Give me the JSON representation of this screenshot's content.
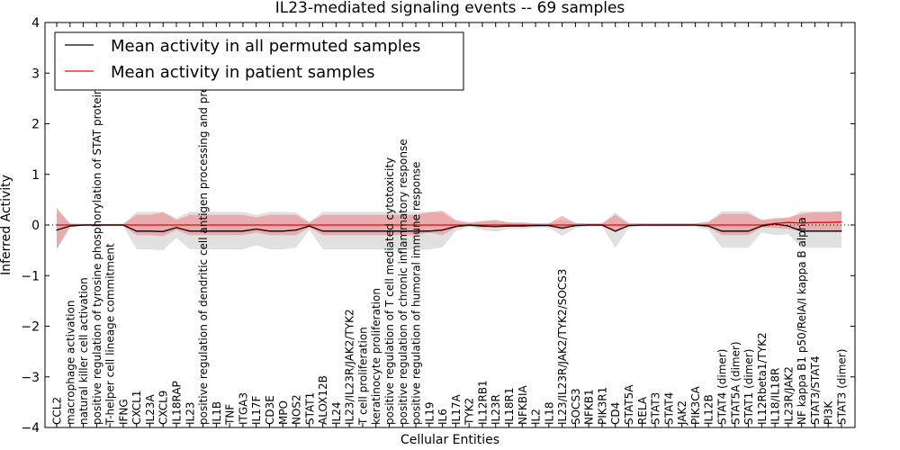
{
  "chart_data": {
    "type": "line",
    "title": "IL23-mediated signaling events -- 69 samples",
    "xlabel": "Cellular Entities",
    "ylabel": "Inferred Activity",
    "ylim": [
      -4,
      4
    ],
    "yticks": [
      -4,
      -3,
      -2,
      -1,
      0,
      1,
      2,
      3,
      4
    ],
    "grid": false,
    "legend_position": "top-left",
    "categories": [
      "CCL2",
      "macrophage activation",
      "natural killer cell activation",
      "positive regulation of tyrosine phosphorylation of STAT protein",
      "T-helper cell lineage commitment",
      "IFNG",
      "CXCL1",
      "IL23A",
      "CXCL9",
      "IL18RAP",
      "IL23",
      "positive regulation of dendritic cell antigen processing and presentation",
      "IL1B",
      "TNF",
      "ITGA3",
      "IL17F",
      "CD3E",
      "MPO",
      "NOS2",
      "STAT1",
      "ALOX12B",
      "IL24",
      "IL23/IL23R/JAK2/TYK2",
      "T cell proliferation",
      "keratinocyte proliferation",
      "positive regulation of T cell mediated cytotoxicity",
      "positive regulation of chronic inflammatory response",
      "positive regulation of humoral immune response",
      "IL19",
      "IL6",
      "IL17A",
      "TYK2",
      "IL12RB1",
      "IL23R",
      "IL18R1",
      "NFKBIA",
      "IL2",
      "IL18",
      "IL23/IL23R/JAK2/TYK2/SOCS3",
      "SOCS3",
      "NFKB1",
      "PIK3R1",
      "CD4",
      "STAT5A",
      "RELA",
      "STAT3",
      "STAT4",
      "JAK2",
      "PIK3CA",
      "IL12B",
      "STAT4 (dimer)",
      "STAT5A (dimer)",
      "STAT1 (dimer)",
      "IL12Rbeta1/TYK2",
      "IL18/IL18R",
      "IL23R/JAK2",
      "NF kappa B1 p50/RelA/I kappa B alpha",
      "STAT3/STAT4",
      "PI3K",
      "STAT3 (dimer)"
    ],
    "series": [
      {
        "name": "Mean activity in all permuted samples",
        "color": "#000000",
        "values": [
          -0.1,
          -0.02,
          0,
          0,
          0,
          0,
          -0.12,
          -0.12,
          -0.13,
          -0.05,
          -0.12,
          -0.12,
          -0.12,
          -0.12,
          -0.12,
          -0.08,
          -0.12,
          -0.12,
          -0.1,
          -0.02,
          -0.12,
          -0.12,
          -0.12,
          -0.12,
          -0.12,
          -0.12,
          -0.12,
          -0.12,
          -0.12,
          -0.1,
          -0.03,
          0,
          -0.02,
          -0.03,
          -0.02,
          -0.02,
          -0.01,
          -0.01,
          -0.06,
          -0.01,
          0,
          0,
          -0.12,
          -0.01,
          0,
          0,
          0,
          0,
          0,
          -0.02,
          -0.12,
          -0.12,
          -0.12,
          -0.02,
          0.02,
          -0.02,
          -0.12,
          -0.12,
          -0.12,
          -0.12
        ],
        "band_upper": [
          0.28,
          0.04,
          0.02,
          0.02,
          0.02,
          0.02,
          0.26,
          0.26,
          0.26,
          0.14,
          0.26,
          0.26,
          0.26,
          0.26,
          0.26,
          0.2,
          0.26,
          0.26,
          0.25,
          0.06,
          0.26,
          0.26,
          0.26,
          0.26,
          0.26,
          0.26,
          0.26,
          0.26,
          0.26,
          0.24,
          0.07,
          0.03,
          0.07,
          0.09,
          0.05,
          0.05,
          0.03,
          0.03,
          0.11,
          0.04,
          0.03,
          0.03,
          0.25,
          0.04,
          0.03,
          0.03,
          0.03,
          0.03,
          0.03,
          0.07,
          0.27,
          0.27,
          0.27,
          0.1,
          0.14,
          0.14,
          0.27,
          0.27,
          0.27,
          0.27
        ],
        "band_lower": [
          -0.48,
          -0.07,
          -0.02,
          -0.02,
          -0.02,
          -0.02,
          -0.48,
          -0.48,
          -0.5,
          -0.25,
          -0.48,
          -0.48,
          -0.48,
          -0.48,
          -0.48,
          -0.4,
          -0.48,
          -0.48,
          -0.45,
          -0.1,
          -0.48,
          -0.48,
          -0.48,
          -0.48,
          -0.48,
          -0.48,
          -0.48,
          -0.48,
          -0.48,
          -0.44,
          -0.12,
          -0.03,
          -0.1,
          -0.13,
          -0.08,
          -0.08,
          -0.05,
          -0.05,
          -0.22,
          -0.06,
          -0.03,
          -0.03,
          -0.45,
          -0.06,
          -0.03,
          -0.03,
          -0.03,
          -0.03,
          -0.03,
          -0.1,
          -0.45,
          -0.45,
          -0.45,
          -0.15,
          -0.2,
          -0.18,
          -0.45,
          -0.45,
          -0.45,
          -0.45
        ]
      },
      {
        "name": "Mean activity in patient samples",
        "color": "#ff0000",
        "values": [
          0,
          0,
          0,
          0,
          0,
          0,
          0,
          0,
          0,
          0,
          0,
          0,
          0,
          0,
          0,
          0,
          0,
          0,
          0,
          0,
          0,
          0,
          0,
          0,
          0,
          0,
          0,
          0,
          0,
          0,
          0,
          0,
          0,
          0,
          0,
          0,
          0,
          0,
          0,
          0,
          0,
          0,
          0,
          0,
          0,
          0,
          0,
          0,
          0,
          0,
          0,
          0,
          0,
          0,
          0.03,
          0.05,
          0.04,
          0.05,
          0.05,
          0.06
        ],
        "band_upper": [
          0.35,
          0.02,
          0.02,
          0.02,
          0.02,
          0.02,
          0.2,
          0.2,
          0.25,
          0.1,
          0.2,
          0.2,
          0.2,
          0.2,
          0.2,
          0.15,
          0.2,
          0.2,
          0.2,
          0.05,
          0.2,
          0.2,
          0.2,
          0.2,
          0.2,
          0.2,
          0.2,
          0.2,
          0.25,
          0.28,
          0.1,
          0.05,
          0.08,
          0.1,
          0.05,
          0.05,
          0.03,
          0.03,
          0.18,
          0.04,
          0.03,
          0.03,
          0.2,
          0.03,
          0.03,
          0.03,
          0.03,
          0.03,
          0.03,
          0.06,
          0.22,
          0.22,
          0.22,
          0.1,
          0.12,
          0.15,
          0.22,
          0.25,
          0.25,
          0.27
        ],
        "band_lower": [
          -0.48,
          -0.02,
          -0.02,
          -0.02,
          -0.02,
          -0.02,
          -0.2,
          -0.2,
          -0.22,
          -0.1,
          -0.2,
          -0.2,
          -0.2,
          -0.2,
          -0.2,
          -0.15,
          -0.2,
          -0.2,
          -0.2,
          -0.05,
          -0.2,
          -0.2,
          -0.2,
          -0.2,
          -0.2,
          -0.2,
          -0.2,
          -0.2,
          -0.15,
          -0.2,
          -0.05,
          -0.03,
          -0.05,
          -0.05,
          -0.03,
          -0.03,
          -0.02,
          -0.02,
          -0.1,
          -0.02,
          -0.02,
          -0.02,
          -0.15,
          -0.02,
          -0.02,
          -0.02,
          -0.02,
          -0.02,
          -0.02,
          -0.05,
          -0.2,
          -0.2,
          -0.2,
          -0.05,
          -0.06,
          -0.08,
          -0.12,
          -0.12,
          -0.12,
          -0.12
        ]
      }
    ]
  }
}
